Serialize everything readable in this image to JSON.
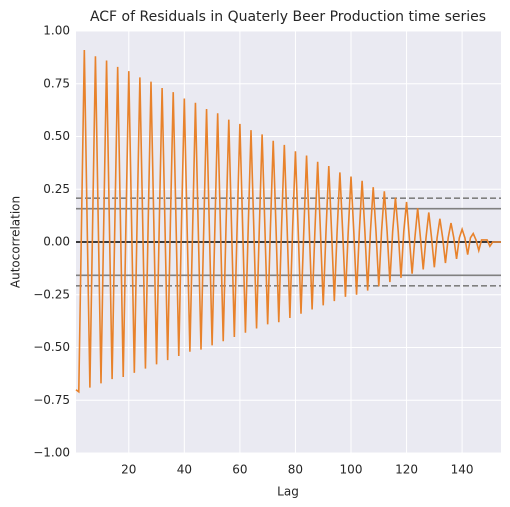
{
  "chart_data": {
    "type": "line",
    "title": "ACF of Residuals in Quaterly Beer Production time series",
    "xlabel": "Lag",
    "ylabel": "Autocorrelation",
    "color": "#e8822b",
    "x": [
      1,
      2,
      3,
      4,
      5,
      6,
      7,
      8,
      9,
      10,
      11,
      12,
      13,
      14,
      15,
      16,
      17,
      18,
      19,
      20,
      21,
      22,
      23,
      24,
      25,
      26,
      27,
      28,
      29,
      30,
      31,
      32,
      33,
      34,
      35,
      36,
      37,
      38,
      39,
      40,
      41,
      42,
      43,
      44,
      45,
      46,
      47,
      48,
      49,
      50,
      51,
      52,
      53,
      54,
      55,
      56,
      57,
      58,
      59,
      60,
      61,
      62,
      63,
      64,
      65,
      66,
      67,
      68,
      69,
      70,
      71,
      72,
      73,
      74,
      75,
      76,
      77,
      78,
      79,
      80,
      81,
      82,
      83,
      84,
      85,
      86,
      87,
      88,
      89,
      90,
      91,
      92,
      93,
      94,
      95,
      96,
      97,
      98,
      99,
      100,
      101,
      102,
      103,
      104,
      105,
      106,
      107,
      108,
      109,
      110,
      111,
      112,
      113,
      114,
      115,
      116,
      117,
      118,
      119,
      120,
      121,
      122,
      123,
      124,
      125,
      126,
      127,
      128,
      129,
      130,
      131,
      132,
      133,
      134,
      135,
      136,
      137,
      138,
      139,
      140,
      141,
      142,
      143,
      144,
      145,
      146,
      147,
      148,
      149,
      150,
      151,
      152,
      153,
      154
    ],
    "values": [
      -0.7,
      -0.71,
      0.1,
      0.91,
      0.1,
      -0.69,
      0.1,
      0.88,
      0.1,
      -0.67,
      0.1,
      0.86,
      0.1,
      -0.65,
      0.1,
      0.83,
      0.1,
      -0.64,
      0.1,
      0.81,
      0.1,
      -0.62,
      0.1,
      0.78,
      0.1,
      -0.6,
      0.1,
      0.76,
      0.1,
      -0.58,
      0.1,
      0.73,
      0.1,
      -0.56,
      0.1,
      0.71,
      0.1,
      -0.54,
      0.1,
      0.68,
      0.07,
      -0.52,
      0.07,
      0.66,
      0.07,
      -0.51,
      0.07,
      0.63,
      0.07,
      -0.49,
      0.07,
      0.61,
      0.07,
      -0.47,
      0.07,
      0.58,
      0.07,
      -0.45,
      0.07,
      0.56,
      0.07,
      -0.43,
      0.07,
      0.53,
      0.07,
      -0.41,
      0.07,
      0.51,
      0.07,
      -0.39,
      0.07,
      0.48,
      0.07,
      -0.38,
      0.07,
      0.46,
      0.07,
      -0.36,
      0.07,
      0.43,
      0.05,
      -0.34,
      0.05,
      0.41,
      0.05,
      -0.32,
      0.05,
      0.38,
      0.05,
      -0.3,
      0.05,
      0.36,
      0.05,
      -0.28,
      0.05,
      0.33,
      0.05,
      -0.26,
      0.05,
      0.31,
      0.05,
      -0.25,
      0.05,
      0.29,
      0.05,
      -0.23,
      0.05,
      0.26,
      0.05,
      -0.21,
      0.05,
      0.24,
      0.05,
      -0.19,
      0.05,
      0.21,
      0.05,
      -0.17,
      0.05,
      0.19,
      0.02,
      -0.15,
      0.02,
      0.16,
      0.02,
      -0.13,
      0.02,
      0.14,
      0.02,
      -0.12,
      0.02,
      0.11,
      0.02,
      -0.1,
      0.02,
      0.09,
      0.02,
      -0.08,
      0.02,
      0.06,
      0.02,
      -0.06,
      0.02,
      0.04,
      0.01,
      -0.04,
      0.01,
      0.01,
      0.01,
      -0.02,
      0,
      0,
      0,
      0
    ],
    "xlim": [
      1,
      154
    ],
    "xticks": [
      20,
      40,
      60,
      80,
      100,
      120,
      140
    ],
    "ylim": [
      -1,
      1
    ],
    "yticks": [
      {
        "value": -1,
        "label": "−1.00"
      },
      {
        "value": -0.75,
        "label": "−0.75"
      },
      {
        "value": -0.5,
        "label": "−0.50"
      },
      {
        "value": -0.25,
        "label": "−0.25"
      },
      {
        "value": 0,
        "label": "0.00"
      },
      {
        "value": 0.25,
        "label": "0.25"
      },
      {
        "value": 0.5,
        "label": "0.50"
      },
      {
        "value": 0.75,
        "label": "0.75"
      },
      {
        "value": 1,
        "label": "1.00"
      }
    ],
    "grid": true,
    "hlines": [
      {
        "value": 0.2076,
        "style": "dashed",
        "color": "#808080"
      },
      {
        "value": 0.158,
        "style": "solid",
        "color": "#808080"
      },
      {
        "value": 0,
        "style": "solid",
        "color": "#000000"
      },
      {
        "value": -0.158,
        "style": "solid",
        "color": "#808080"
      },
      {
        "value": -0.2076,
        "style": "dashed",
        "color": "#808080"
      }
    ]
  }
}
